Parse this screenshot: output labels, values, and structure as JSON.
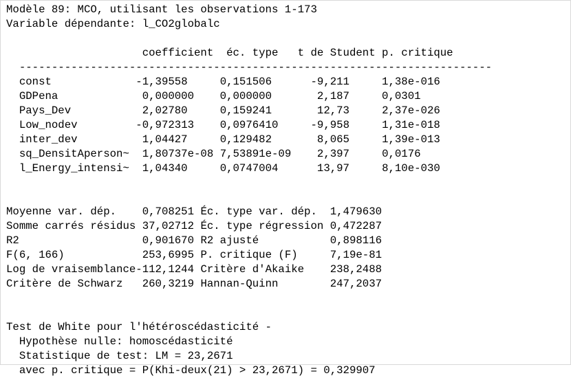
{
  "model": {
    "title": "Modèle 89: MCO, utilisant les observations 1-173",
    "dependent": "Variable dépendante: l_CO2globalc"
  },
  "coef_table": {
    "headers": [
      "coefficient",
      "éc. type",
      "t de Student",
      "p. critique"
    ],
    "separator": "-------------------------------------------------------------------------",
    "rows": [
      {
        "name": "const",
        "coef": "-1,39558",
        "se": "0,151506",
        "t": "-9,211",
        "p": "1,38e-016"
      },
      {
        "name": "GDPena",
        "coef": "0,000000",
        "se": "0,000000",
        "t": "2,187",
        "p": "0,0301"
      },
      {
        "name": "Pays_Dev",
        "coef": "2,02780",
        "se": "0,159241",
        "t": "12,73",
        "p": "2,37e-026"
      },
      {
        "name": "Low_nodev",
        "coef": "-0,972313",
        "se": "0,0976410",
        "t": "-9,958",
        "p": "1,31e-018"
      },
      {
        "name": "inter_dev",
        "coef": "1,04427",
        "se": "0,129482",
        "t": "8,065",
        "p": "1,39e-013"
      },
      {
        "name": "sq_DensitAperson~",
        "coef": "1,80737e-08",
        "se": "7,53891e-09",
        "t": "2,397",
        "p": "0,0176"
      },
      {
        "name": "l_Energy_intensi~",
        "coef": "1,04340",
        "se": "0,0747004",
        "t": "13,97",
        "p": "8,10e-030"
      }
    ]
  },
  "stats": [
    {
      "label1": "Moyenne var. dép.",
      "value1": "0,708251",
      "label2": "Éc. type var. dép.",
      "value2": "1,479630"
    },
    {
      "label1": "Somme carrés résidus",
      "value1": "37,02712",
      "label2": "Éc. type régression",
      "value2": "0,472287"
    },
    {
      "label1": "R2",
      "value1": "0,901670",
      "label2": "R2 ajusté",
      "value2": "0,898116"
    },
    {
      "label1": "F(6, 166)",
      "value1": "253,6995",
      "label2": "P. critique (F)",
      "value2": "7,19e-81"
    },
    {
      "label1": "Log de vraisemblance",
      "value1": "-112,1244",
      "label2": "Critère d'Akaike",
      "value2": "238,2488"
    },
    {
      "label1": "Critère de Schwarz",
      "value1": "260,3219",
      "label2": "Hannan-Quinn",
      "value2": "247,2037"
    }
  ],
  "white_test": {
    "title": "Test de White pour l'hétéroscédasticité -",
    "hypothesis": "Hypothèse nulle: homoscédasticité",
    "statistic": "Statistique de test: LM = 23,2671",
    "pvalue": "avec p. critique = P(Khi-deux(21) > 23,2671) = 0,329907"
  }
}
